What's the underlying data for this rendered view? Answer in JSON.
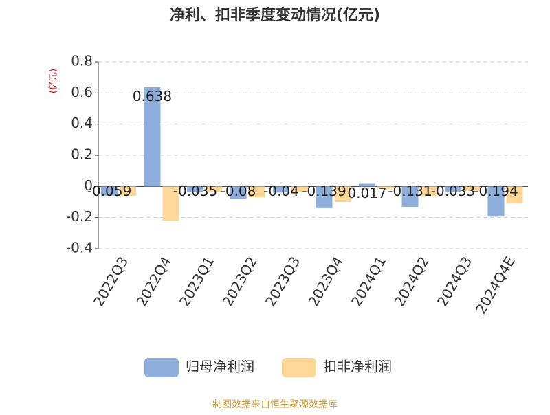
{
  "chart_data": {
    "type": "bar",
    "title": "净利、扣非季度变动情况(亿元)",
    "y_label": "(亿元)",
    "categories": [
      "2022Q3",
      "2022Q4",
      "2023Q1",
      "2023Q2",
      "2023Q3",
      "2023Q4",
      "2024Q1",
      "2024Q2",
      "2024Q3",
      "2024Q4E"
    ],
    "series": [
      {
        "name": "归母净利润",
        "color": "#8eaedc",
        "values": [
          -0.059,
          0.638,
          -0.035,
          -0.08,
          -0.04,
          -0.139,
          0.017,
          -0.131,
          -0.033,
          -0.194
        ]
      },
      {
        "name": "扣非净利润",
        "color": "#fdd797",
        "values": [
          -0.06,
          -0.22,
          -0.035,
          -0.07,
          -0.035,
          -0.1,
          -0.015,
          -0.06,
          -0.03,
          -0.11
        ]
      }
    ],
    "ylim": [
      -0.4,
      0.8
    ],
    "yticks": [
      -0.4,
      -0.2,
      0,
      0.2,
      0.4,
      0.6,
      0.8
    ],
    "grid": true,
    "source": "制图数据来自恒生聚源数据库"
  }
}
